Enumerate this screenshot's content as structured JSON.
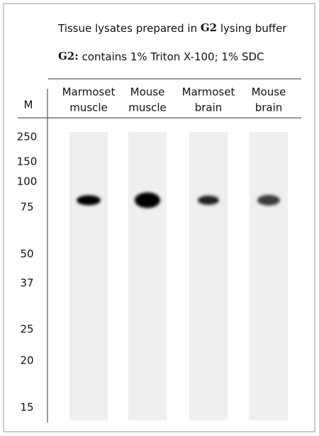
{
  "header": {
    "title": {
      "before": "Tissue lysates prepared in ",
      "bold": "G2",
      "after": " lysing buffer"
    },
    "note": {
      "bold": "G2:",
      "after": " contains 1% Triton X-100; 1% SDC"
    }
  },
  "marker_header": "M",
  "lanes": [
    [
      "Marmoset",
      "muscle"
    ],
    [
      "Mouse",
      "muscle"
    ],
    [
      "Marmoset",
      "brain"
    ],
    [
      "Mouse",
      "brain"
    ]
  ],
  "markers": [
    "250",
    "150",
    "100",
    "75",
    "50",
    "37",
    "25",
    "20",
    "15"
  ]
}
